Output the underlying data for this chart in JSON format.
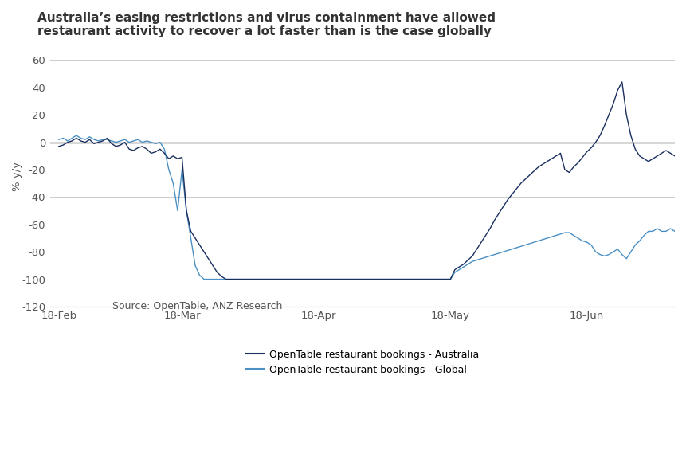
{
  "title_line1": "Australia’s easing restrictions and virus containment have allowed",
  "title_line2": "restaurant activity to recover a lot faster than is the case globally",
  "ylabel": "% y/y",
  "source": "Source: OpenTable, ANZ Research",
  "legend_australia": "OpenTable restaurant bookings - Australia",
  "legend_global": "OpenTable restaurant bookings - Global",
  "color_australia": "#1a2f5e",
  "color_global": "#4a90c4",
  "ylim": [
    -120,
    70
  ],
  "yticks": [
    -120,
    -100,
    -80,
    -60,
    -40,
    -20,
    0,
    20,
    40,
    60
  ],
  "background_color": "#ffffff",
  "grid_color": "#cccccc",
  "xtick_labels": [
    "18-Feb",
    "18-Mar",
    "18-Apr",
    "18-May",
    "18-Jun"
  ],
  "xtick_positions": [
    0,
    28,
    59,
    89,
    120
  ],
  "xmax": 140,
  "aus_x": [
    0,
    1,
    2,
    3,
    4,
    5,
    6,
    7,
    8,
    9,
    10,
    11,
    12,
    13,
    14,
    15,
    16,
    17,
    18,
    19,
    20,
    21,
    22,
    23,
    24,
    25,
    26,
    27,
    28,
    29,
    30,
    31,
    32,
    33,
    34,
    35,
    36,
    37,
    38,
    39,
    40,
    41,
    42,
    43,
    44,
    45,
    46,
    47,
    48,
    49,
    50,
    51,
    52,
    53,
    54,
    55,
    56,
    57,
    58,
    59,
    60,
    61,
    62,
    63,
    64,
    65,
    66,
    67,
    68,
    69,
    70,
    71,
    72,
    73,
    74,
    75,
    76,
    77,
    78,
    79,
    80,
    81,
    82,
    83,
    84,
    85,
    86,
    87,
    88,
    89,
    90,
    91,
    92,
    93,
    94,
    95,
    96,
    97,
    98,
    99,
    100,
    101,
    102,
    103,
    104,
    105,
    106,
    107,
    108,
    109,
    110,
    111,
    112,
    113,
    114,
    115,
    116,
    117,
    118,
    119,
    120,
    121,
    122,
    123,
    124,
    125,
    126,
    127,
    128,
    129,
    130,
    131,
    132,
    133,
    134,
    135,
    136,
    137,
    138,
    139,
    140
  ],
  "aus_y": [
    -3,
    -2,
    0,
    1,
    3,
    1,
    0,
    2,
    -1,
    0,
    1,
    3,
    -1,
    -3,
    -2,
    0,
    -5,
    -6,
    -4,
    -3,
    -5,
    -8,
    -7,
    -5,
    -8,
    -12,
    -10,
    -12,
    -11,
    -50,
    -65,
    -70,
    -75,
    -80,
    -85,
    -90,
    -95,
    -98,
    -100,
    -100,
    -100,
    -100,
    -100,
    -100,
    -100,
    -100,
    -100,
    -100,
    -100,
    -100,
    -100,
    -100,
    -100,
    -100,
    -100,
    -100,
    -100,
    -100,
    -100,
    -100,
    -100,
    -100,
    -100,
    -100,
    -100,
    -100,
    -100,
    -100,
    -100,
    -100,
    -100,
    -100,
    -100,
    -100,
    -100,
    -100,
    -100,
    -100,
    -100,
    -100,
    -100,
    -100,
    -100,
    -100,
    -100,
    -100,
    -100,
    -100,
    -100,
    -100,
    -93,
    -91,
    -89,
    -86,
    -83,
    -78,
    -73,
    -68,
    -63,
    -57,
    -52,
    -47,
    -42,
    -38,
    -34,
    -30,
    -27,
    -24,
    -21,
    -18,
    -16,
    -14,
    -12,
    -10,
    -8,
    -20,
    -22,
    -18,
    -15,
    -11,
    -7,
    -4,
    0,
    5,
    12,
    20,
    28,
    38,
    44,
    20,
    5,
    -5,
    -10,
    -12,
    -14,
    -12,
    -10,
    -8,
    -6,
    -8,
    -10
  ],
  "glob_x": [
    0,
    1,
    2,
    3,
    4,
    5,
    6,
    7,
    8,
    9,
    10,
    11,
    12,
    13,
    14,
    15,
    16,
    17,
    18,
    19,
    20,
    21,
    22,
    23,
    24,
    25,
    26,
    27,
    28,
    29,
    30,
    31,
    32,
    33,
    34,
    35,
    36,
    37,
    38,
    39,
    40,
    41,
    42,
    43,
    44,
    45,
    46,
    47,
    48,
    49,
    50,
    51,
    52,
    53,
    54,
    55,
    56,
    57,
    58,
    59,
    60,
    61,
    62,
    63,
    64,
    65,
    66,
    67,
    68,
    69,
    70,
    71,
    72,
    73,
    74,
    75,
    76,
    77,
    78,
    79,
    80,
    81,
    82,
    83,
    84,
    85,
    86,
    87,
    88,
    89,
    90,
    91,
    92,
    93,
    94,
    95,
    96,
    97,
    98,
    99,
    100,
    101,
    102,
    103,
    104,
    105,
    106,
    107,
    108,
    109,
    110,
    111,
    112,
    113,
    114,
    115,
    116,
    117,
    118,
    119,
    120,
    121,
    122,
    123,
    124,
    125,
    126,
    127,
    128,
    129,
    130,
    131,
    132,
    133,
    134,
    135,
    136,
    137,
    138,
    139,
    140
  ],
  "glob_y": [
    2,
    3,
    1,
    3,
    5,
    3,
    2,
    4,
    2,
    1,
    2,
    2,
    1,
    0,
    1,
    2,
    0,
    1,
    2,
    0,
    1,
    0,
    -1,
    0,
    -5,
    -20,
    -30,
    -50,
    -20,
    -50,
    -70,
    -90,
    -97,
    -100,
    -100,
    -100,
    -100,
    -100,
    -100,
    -100,
    -100,
    -100,
    -100,
    -100,
    -100,
    -100,
    -100,
    -100,
    -100,
    -100,
    -100,
    -100,
    -100,
    -100,
    -100,
    -100,
    -100,
    -100,
    -100,
    -100,
    -100,
    -100,
    -100,
    -100,
    -100,
    -100,
    -100,
    -100,
    -100,
    -100,
    -100,
    -100,
    -100,
    -100,
    -100,
    -100,
    -100,
    -100,
    -100,
    -100,
    -100,
    -100,
    -100,
    -100,
    -100,
    -100,
    -100,
    -100,
    -100,
    -100,
    -95,
    -93,
    -91,
    -89,
    -87,
    -86,
    -85,
    -84,
    -83,
    -82,
    -81,
    -80,
    -79,
    -78,
    -77,
    -76,
    -75,
    -74,
    -73,
    -72,
    -71,
    -70,
    -69,
    -68,
    -67,
    -66,
    -66,
    -68,
    -70,
    -72,
    -73,
    -75,
    -80,
    -82,
    -83,
    -82,
    -80,
    -78,
    -82,
    -85,
    -80,
    -75,
    -72,
    -68,
    -65,
    -65,
    -63,
    -65,
    -65,
    -63,
    -65
  ]
}
